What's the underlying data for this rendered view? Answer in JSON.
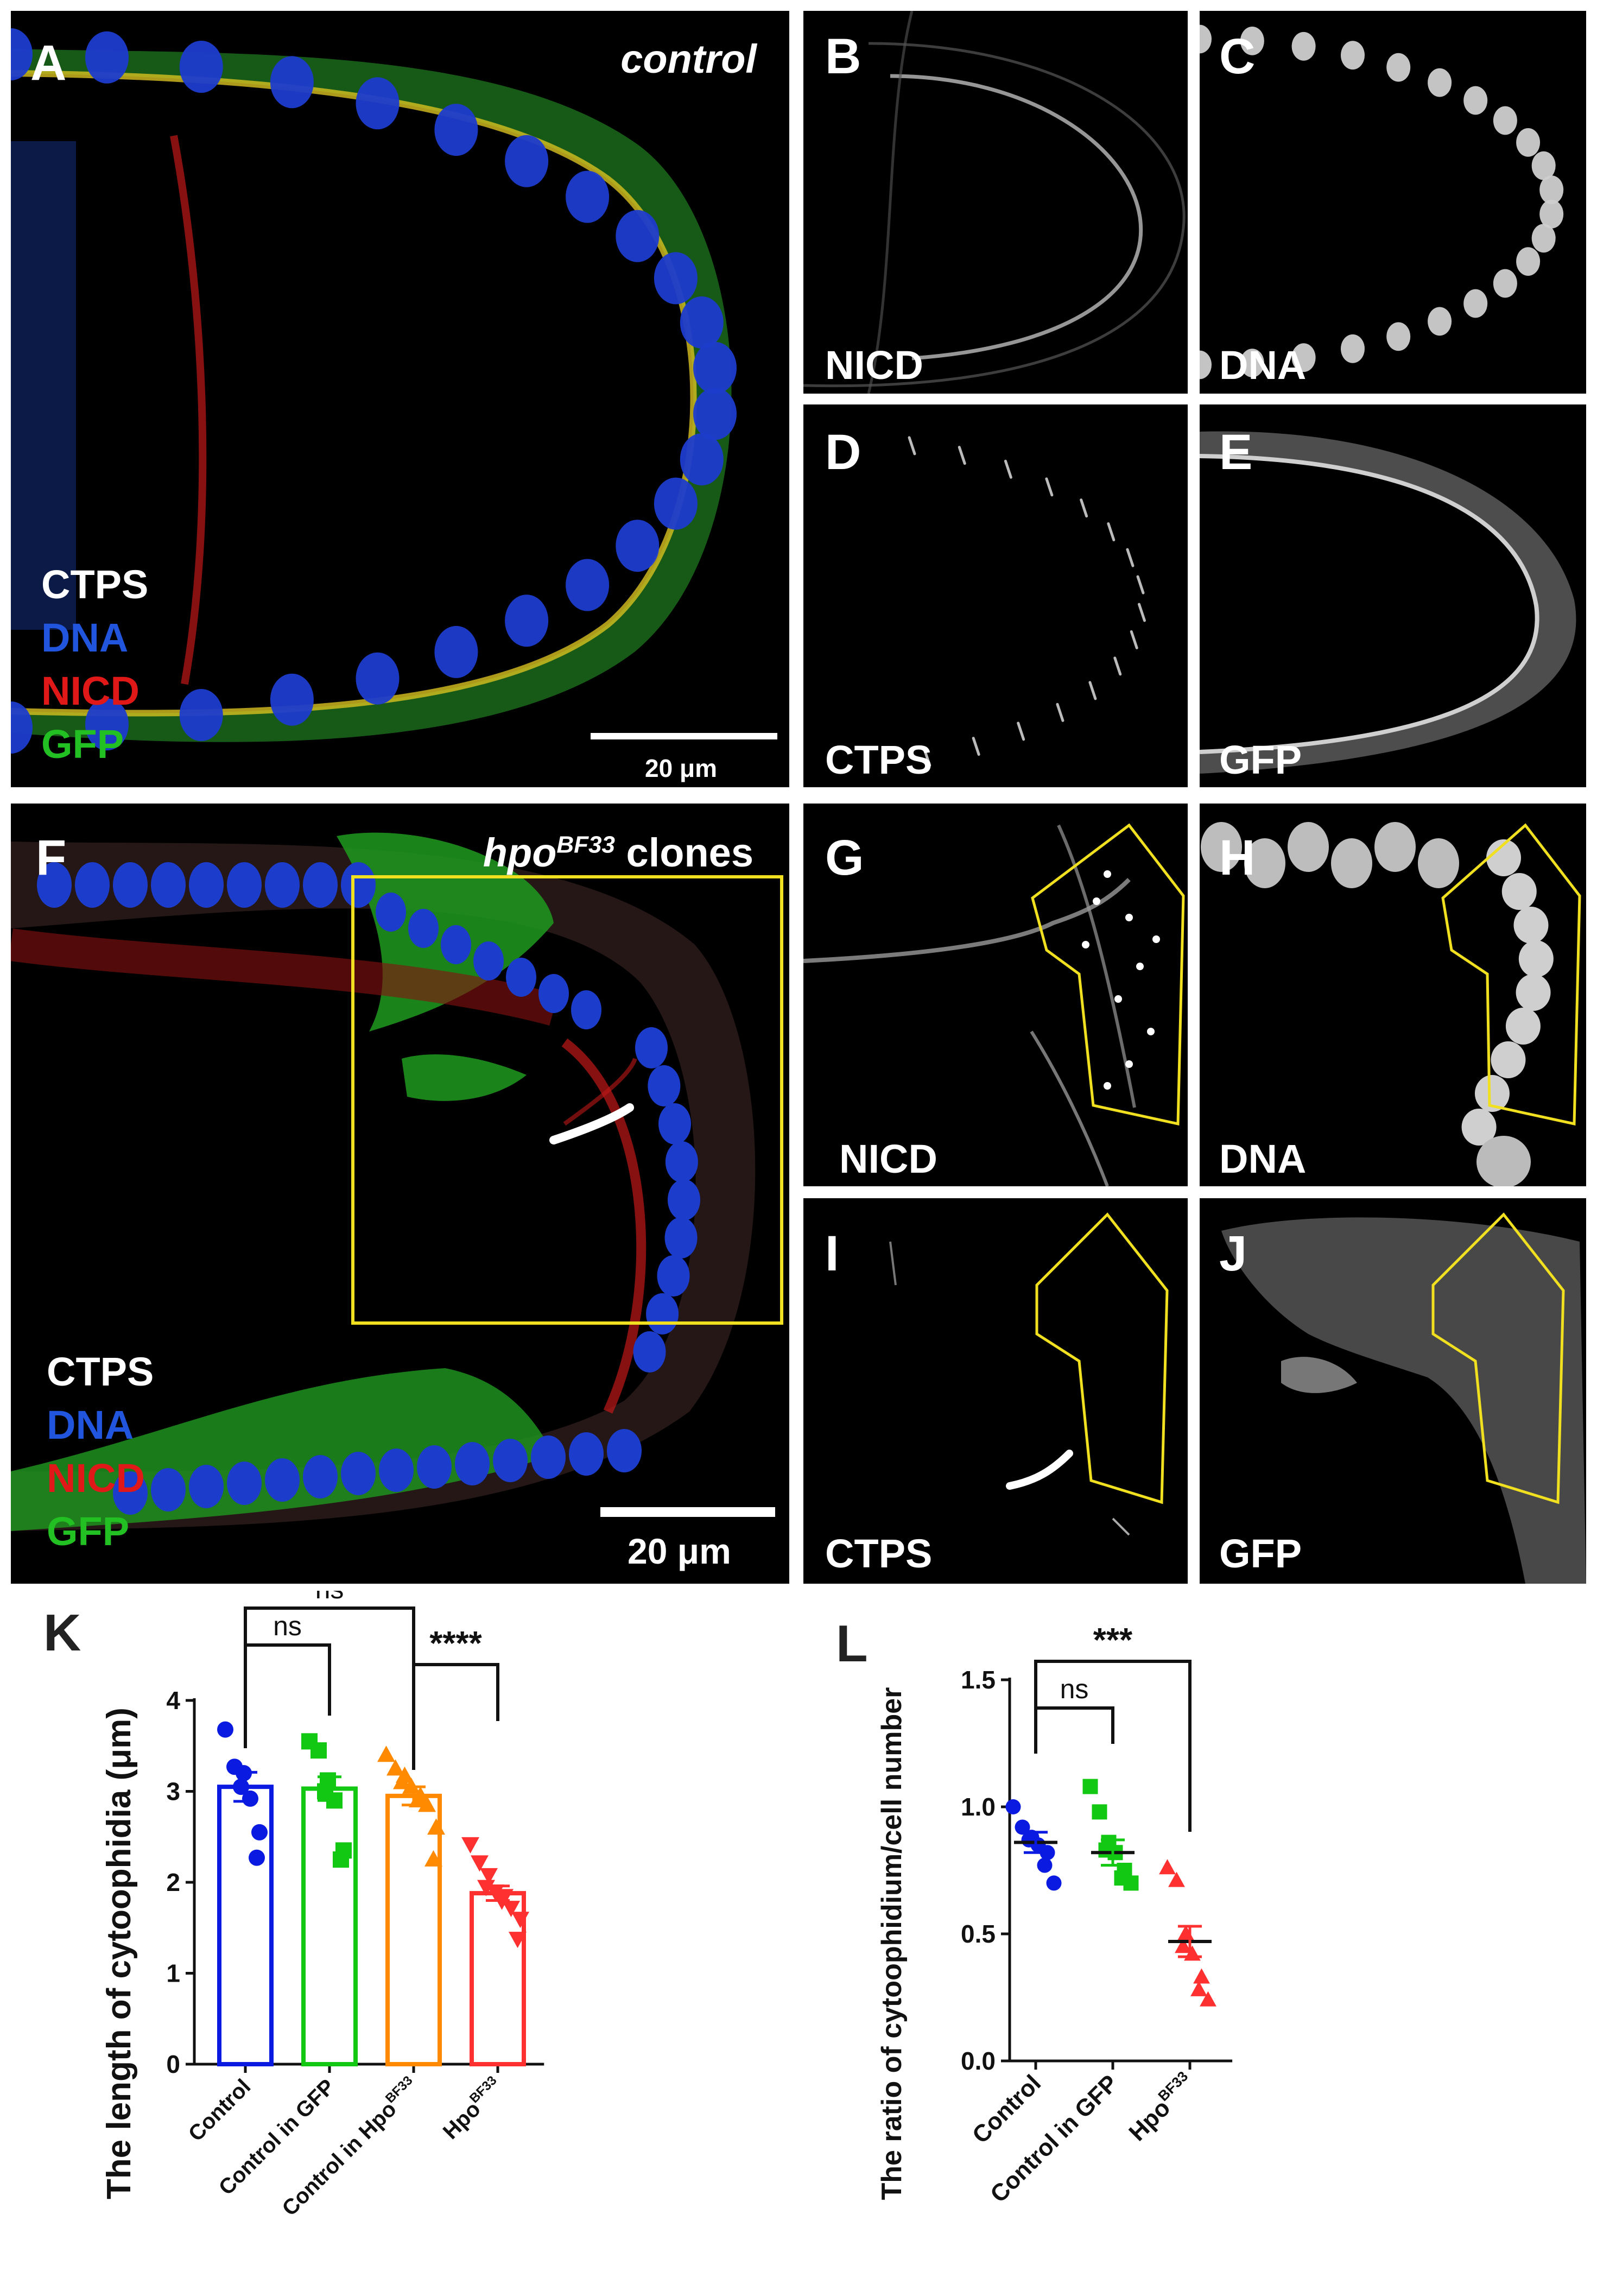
{
  "micrographs": {
    "A": {
      "label": "A",
      "condition": "control",
      "legend": [
        "CTPS",
        "DNA",
        "NICD",
        "GFP"
      ],
      "scale": "20 μm"
    },
    "B": {
      "label": "B",
      "channel": "NICD"
    },
    "C": {
      "label": "C",
      "channel": "DNA"
    },
    "D": {
      "label": "D",
      "channel": "CTPS"
    },
    "E": {
      "label": "E",
      "channel": "GFP"
    },
    "F": {
      "label": "F",
      "condition_main": "hpo",
      "condition_sup": "BF33",
      "condition_rest": " clones",
      "legend": [
        "CTPS",
        "DNA",
        "NICD",
        "GFP"
      ],
      "scale": "20 μm"
    },
    "G": {
      "label": "G",
      "channel": "NICD"
    },
    "H": {
      "label": "H",
      "channel": "DNA"
    },
    "I": {
      "label": "I",
      "channel": "CTPS"
    },
    "J": {
      "label": "J",
      "channel": "GFP"
    }
  },
  "colors": {
    "CTPS": "#ffffff",
    "DNA": "#2255dd",
    "NICD": "#e01818",
    "GFP": "#22c022",
    "outline": "#f0e020",
    "control": "#0a1ae0",
    "control_gfp": "#12c812",
    "control_hpo": "#ff8a00",
    "hpo": "#ff3030"
  },
  "chart_data": [
    {
      "panel": "K",
      "type": "bar",
      "ylabel": "The length of cytoophidia (μm)",
      "ylim": [
        0,
        4
      ],
      "yticks": [
        "0",
        "1",
        "2",
        "3",
        "4"
      ],
      "categories": [
        "Control",
        "Control in GFP",
        "Control in Hpo",
        "Hpo"
      ],
      "category_superscripts": [
        "",
        "",
        "BF33",
        "BF33"
      ],
      "values": [
        3.05,
        3.03,
        2.95,
        1.88
      ],
      "sem": [
        0.16,
        0.13,
        0.1,
        0.08
      ],
      "points": [
        [
          3.68,
          3.27,
          3.2,
          3.05,
          2.92,
          2.55,
          2.27
        ],
        [
          3.55,
          3.45,
          3.12,
          3.0,
          2.9,
          2.35,
          2.25
        ],
        [
          3.4,
          3.25,
          3.17,
          3.1,
          3.05,
          2.95,
          2.9,
          2.85,
          2.6,
          2.25
        ],
        [
          2.42,
          2.22,
          2.08,
          1.95,
          1.9,
          1.85,
          1.8,
          1.72,
          1.6,
          1.38
        ]
      ],
      "markers": [
        "circle",
        "square",
        "triangle",
        "triangle-down"
      ],
      "annotations": [
        {
          "from": 0,
          "to": 1,
          "text": "ns"
        },
        {
          "from": 0,
          "to": 2,
          "text": "ns"
        },
        {
          "from": 2,
          "to": 3,
          "text": "****"
        }
      ]
    },
    {
      "panel": "L",
      "type": "scatter",
      "ylabel": "The ratio of cytoophidium/cell number",
      "ylim": [
        0,
        1.5
      ],
      "yticks": [
        "0.0",
        "0.5",
        "1.0",
        "1.5"
      ],
      "categories": [
        "Control",
        "Control in GFP",
        "Hpo"
      ],
      "category_superscripts": [
        "",
        "",
        "BF33"
      ],
      "values": [
        0.86,
        0.82,
        0.47
      ],
      "sem": [
        0.04,
        0.05,
        0.06
      ],
      "points": [
        [
          1.0,
          0.92,
          0.88,
          0.87,
          0.85,
          0.82,
          0.77,
          0.7
        ],
        [
          1.08,
          0.98,
          0.86,
          0.83,
          0.82,
          0.75,
          0.72,
          0.7
        ],
        [
          0.76,
          0.71,
          0.5,
          0.45,
          0.42,
          0.33,
          0.28,
          0.24
        ]
      ],
      "markers": [
        "circle",
        "square",
        "triangle"
      ],
      "annotations": [
        {
          "from": 0,
          "to": 1,
          "text": "ns"
        },
        {
          "from": 0,
          "to": 2,
          "text": "***"
        }
      ]
    }
  ],
  "chart_labels": {
    "K": "K",
    "L": "L"
  }
}
